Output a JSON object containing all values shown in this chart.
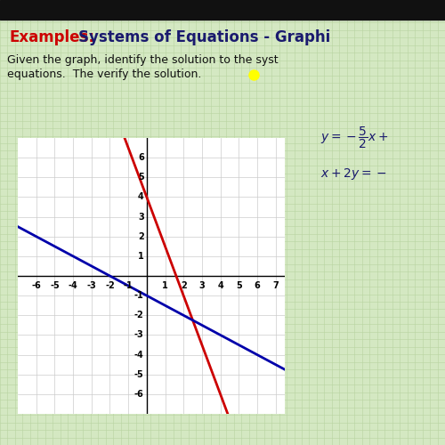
{
  "title_examples": "Examples:",
  "title_main": "Systems of Equations - Graphi",
  "subtitle_line1": "Given the graph, identify the solution to the syst",
  "subtitle_line2": "equations.  The verify the solution.",
  "background_color": "#d4e8c2",
  "grid_color": "#b8d4a0",
  "plot_bg": "#ffffff",
  "plot_grid_color": "#cccccc",
  "red_line_slope": -2.5,
  "red_line_intercept": 4,
  "blue_line_slope": -0.5,
  "blue_line_intercept": -1,
  "red_color": "#cc0000",
  "blue_color": "#0000aa",
  "title_red_color": "#cc0000",
  "title_blue_color": "#1a1a6e",
  "body_text_color": "#111111",
  "yellow_dot_color": "#ffff00",
  "black_bar_color": "#111111",
  "eq1_text": "$y = -\\dfrac{5}{2}x +$",
  "eq2_text": "$x + 2y = -$",
  "font_title": 12,
  "font_body": 9,
  "font_eq": 10,
  "font_tick": 7
}
